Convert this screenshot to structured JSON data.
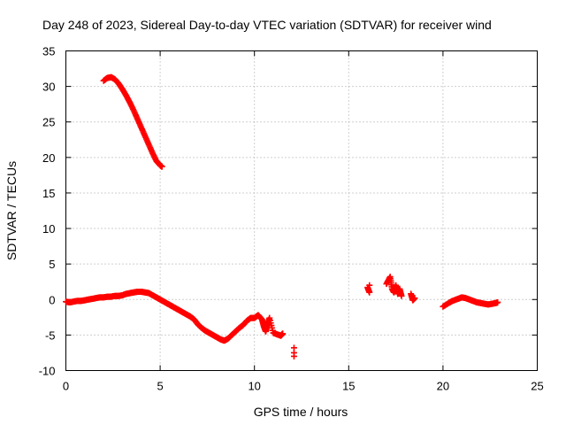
{
  "chart_data": {
    "type": "scatter",
    "title": "Day 248 of 2023, Sidereal Day-to-day VTEC variation (SDTVAR) for receiver wind",
    "xlabel": "GPS time / hours",
    "ylabel": "SDTVAR / TECUs",
    "xlim": [
      0,
      25
    ],
    "ylim": [
      -10,
      35
    ],
    "xticks": [
      0,
      5,
      10,
      15,
      20,
      25
    ],
    "yticks": [
      -10,
      -5,
      0,
      5,
      10,
      15,
      20,
      25,
      30,
      35
    ],
    "grid": true,
    "marker": "+",
    "series": [
      {
        "name": "SDTVAR",
        "color": "#ff0000",
        "x": [
          2.0,
          2.2,
          2.4,
          2.6,
          2.8,
          3.0,
          3.2,
          3.4,
          3.6,
          3.8,
          4.0,
          4.2,
          4.4,
          4.6,
          4.8,
          5.0,
          5.1,
          0.0,
          0.2,
          0.4,
          0.6,
          0.8,
          1.0,
          1.2,
          1.4,
          1.6,
          1.8,
          2.0,
          2.2,
          2.4,
          2.6,
          2.8,
          3.0,
          3.2,
          3.4,
          3.6,
          3.8,
          4.0,
          4.2,
          4.4,
          4.6,
          4.8,
          5.0,
          5.2,
          5.4,
          5.6,
          5.8,
          6.0,
          6.2,
          6.4,
          6.6,
          6.8,
          7.0,
          7.2,
          7.4,
          7.6,
          7.8,
          8.0,
          8.2,
          8.4,
          8.6,
          8.8,
          9.0,
          9.2,
          9.4,
          9.6,
          9.8,
          10.0,
          10.2,
          10.4,
          10.5,
          10.6,
          10.7,
          10.8,
          11.0,
          11.2,
          11.4,
          11.5,
          12.1,
          12.1,
          12.1,
          16.0,
          16.1,
          16.1,
          17.0,
          17.2,
          17.3,
          17.4,
          17.5,
          17.6,
          17.7,
          17.8,
          18.3,
          18.4,
          18.5,
          20.0,
          20.3,
          20.5,
          20.8,
          21.0,
          21.2,
          21.4,
          21.6,
          21.8,
          22.0,
          22.2,
          22.4,
          22.6,
          22.8,
          22.9
        ],
        "y": [
          30.8,
          31.2,
          31.3,
          31.0,
          30.4,
          29.6,
          28.7,
          27.7,
          26.6,
          25.4,
          24.2,
          23.0,
          21.8,
          20.6,
          19.5,
          18.9,
          18.7,
          -0.3,
          -0.4,
          -0.3,
          -0.2,
          -0.2,
          -0.1,
          0.0,
          0.1,
          0.2,
          0.3,
          0.3,
          0.4,
          0.4,
          0.5,
          0.5,
          0.6,
          0.8,
          0.9,
          1.0,
          1.1,
          1.1,
          1.0,
          0.9,
          0.6,
          0.3,
          0.0,
          -0.3,
          -0.6,
          -0.9,
          -1.2,
          -1.5,
          -1.8,
          -2.1,
          -2.4,
          -2.8,
          -3.5,
          -4.0,
          -4.4,
          -4.7,
          -5.0,
          -5.3,
          -5.6,
          -5.8,
          -5.5,
          -5.0,
          -4.5,
          -4.0,
          -3.6,
          -3.0,
          -2.6,
          -2.6,
          -2.2,
          -2.8,
          -3.8,
          -4.5,
          -3.5,
          -2.6,
          -4.7,
          -4.9,
          -5.1,
          -4.8,
          -6.8,
          -7.5,
          -8.0,
          1.7,
          1.0,
          2.0,
          2.2,
          3.2,
          1.5,
          1.0,
          2.0,
          0.8,
          1.5,
          0.5,
          0.8,
          -0.1,
          0.2,
          -1.0,
          -0.5,
          -0.2,
          0.1,
          0.3,
          0.2,
          0.0,
          -0.2,
          -0.4,
          -0.5,
          -0.6,
          -0.7,
          -0.6,
          -0.5,
          -0.4
        ]
      }
    ]
  }
}
